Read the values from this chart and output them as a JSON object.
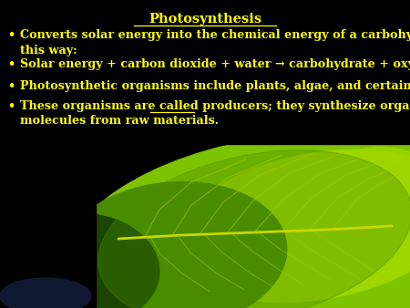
{
  "background_color": "#000000",
  "text_color": "#FFFF00",
  "title": "Photosynthesis",
  "title_fontsize": 10.5,
  "bullet_fontsize": 9.2,
  "bullet_lines": [
    "Converts solar energy into the chemical energy of a carbohydrate in\nthis way:",
    "Solar energy + carbon dioxide + water → carbohydrate + oxygen",
    "Photosynthetic organisms include plants, algae, and certain bacteria.",
    "These organisms are called producers; they synthesize organic\nmolecules from raw materials."
  ],
  "underline_word": "producers",
  "figsize": [
    4.5,
    3.38
  ],
  "dpi": 100,
  "leaf_colors": {
    "bright": "#7dc400",
    "bright2": "#9ed600",
    "mid": "#4a8c00",
    "dark": "#1a4400",
    "vein": "#c8d800",
    "vein_dark": "#3a6600"
  }
}
